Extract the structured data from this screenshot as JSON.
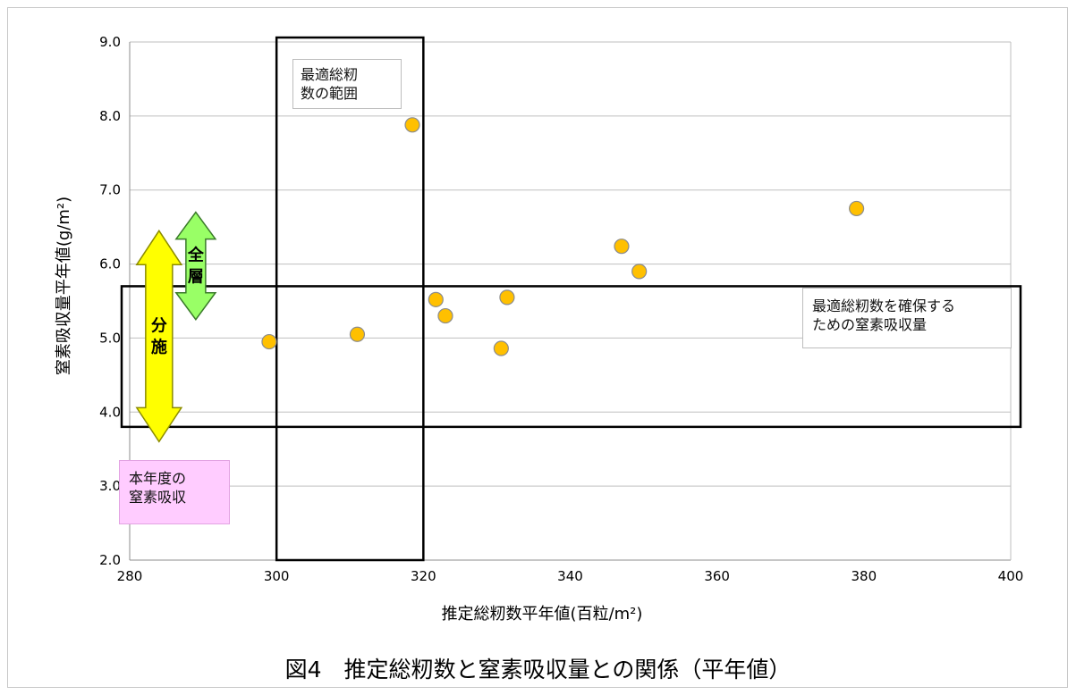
{
  "chart_data": {
    "type": "scatter",
    "title": "",
    "xlabel": "推定総籾数平年値(百粒/m²)",
    "ylabel": "窒素吸収量平年値(g/m²)",
    "xlim": [
      280,
      400
    ],
    "ylim": [
      2.0,
      9.0
    ],
    "x_ticks": [
      280,
      300,
      320,
      340,
      360,
      380,
      400
    ],
    "y_ticks": [
      "2.0",
      "3.0",
      "4.0",
      "5.0",
      "6.0",
      "7.0",
      "8.0",
      "9.0"
    ],
    "grid": "horizontal",
    "marker_color": "#FFC000",
    "marker_edge_color": "#8c8c8c",
    "points": [
      {
        "x": 299,
        "y": 4.95
      },
      {
        "x": 311,
        "y": 5.05
      },
      {
        "x": 318.5,
        "y": 7.88
      },
      {
        "x": 321.7,
        "y": 5.52
      },
      {
        "x": 323,
        "y": 5.3
      },
      {
        "x": 330.6,
        "y": 4.86
      },
      {
        "x": 331.4,
        "y": 5.55
      },
      {
        "x": 347,
        "y": 6.24
      },
      {
        "x": 349.4,
        "y": 5.9
      },
      {
        "x": 379,
        "y": 6.75
      }
    ],
    "regions": [
      {
        "name": "optimal_grain_range",
        "x": [
          300,
          320
        ],
        "y": [
          2.0,
          9.0
        ]
      },
      {
        "name": "optimal_n_uptake",
        "x": [
          280,
          400
        ],
        "y": [
          3.8,
          5.7
        ]
      }
    ],
    "range_arrows": [
      {
        "label": "分施",
        "y": [
          3.6,
          6.45
        ],
        "x": 284,
        "color": "#FFFF00",
        "edge": "#8c8c00"
      },
      {
        "label": "全層",
        "y": [
          5.25,
          6.7
        ],
        "x": 289,
        "color": "#99FF66",
        "edge": "#3a7a2a"
      }
    ]
  },
  "annotations": {
    "optimal_range": "最適総籾\n数の範囲",
    "optimal_n": "最適総籾数を確保する\nための窒素吸収量",
    "this_year": "本年度の\n窒素吸収"
  },
  "caption": "図4　推定総籾数と窒素吸収量との関係（平年値）"
}
